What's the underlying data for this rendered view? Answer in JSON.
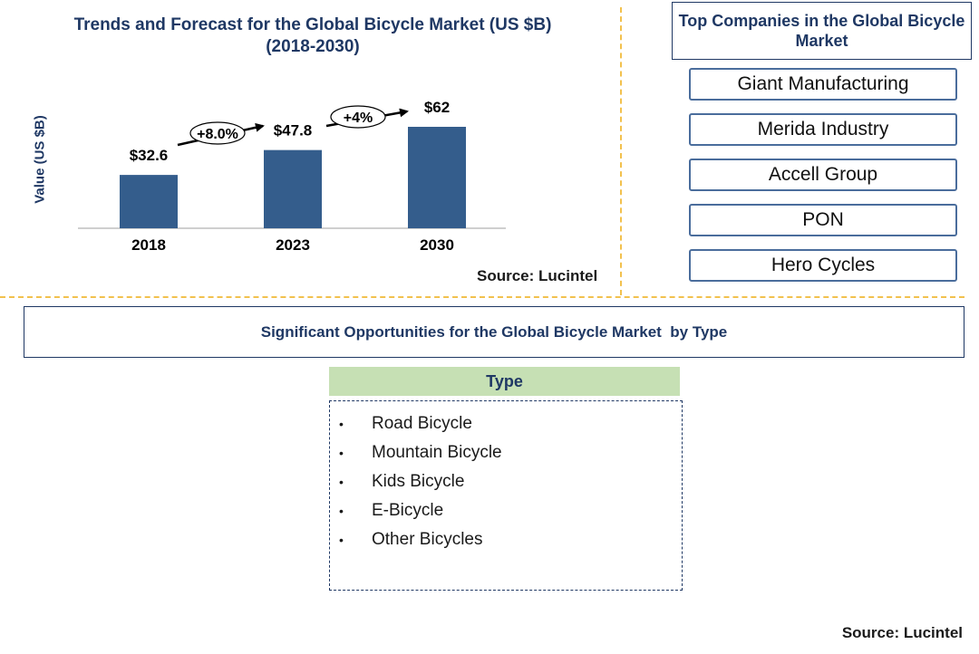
{
  "chart_data": {
    "type": "bar",
    "title": "Trends and Forecast for the Global Bicycle Market (US $B)",
    "subtitle": "(2018-2030)",
    "ylabel": "Value (US $B)",
    "xlabel": "",
    "categories": [
      "2018",
      "2023",
      "2030"
    ],
    "values": [
      32.6,
      47.8,
      62
    ],
    "value_labels": [
      "$32.6",
      "$47.8",
      "$62"
    ],
    "ylim": [
      0,
      70
    ],
    "bar_color": "#345d8c",
    "growth_annotations": [
      {
        "label": "+8.0%",
        "from": "2018",
        "to": "2023"
      },
      {
        "label": "+4%",
        "from": "2023",
        "to": "2030"
      }
    ],
    "grid": false,
    "legend": "none"
  },
  "chart_source": "Source: Lucintel",
  "companies": {
    "title": "Top Companies in the Global Bicycle Market",
    "items": [
      "Giant Manufacturing",
      "Merida Industry",
      "Accell Group",
      "PON",
      "Hero Cycles"
    ]
  },
  "opportunities": {
    "title": "Significant Opportunities for the Global Bicycle Market  by Type",
    "type_header": "Type",
    "types": [
      "Road Bicycle",
      "Mountain Bicycle",
      "Kids Bicycle",
      "E-Bicycle",
      "Other Bicycles"
    ]
  },
  "footer_source": "Source: Lucintel",
  "colors": {
    "title_navy": "#1f3864",
    "divider": "#f2c14e",
    "type_header_bg": "#c6e0b4",
    "company_border": "#4a6d9c"
  }
}
